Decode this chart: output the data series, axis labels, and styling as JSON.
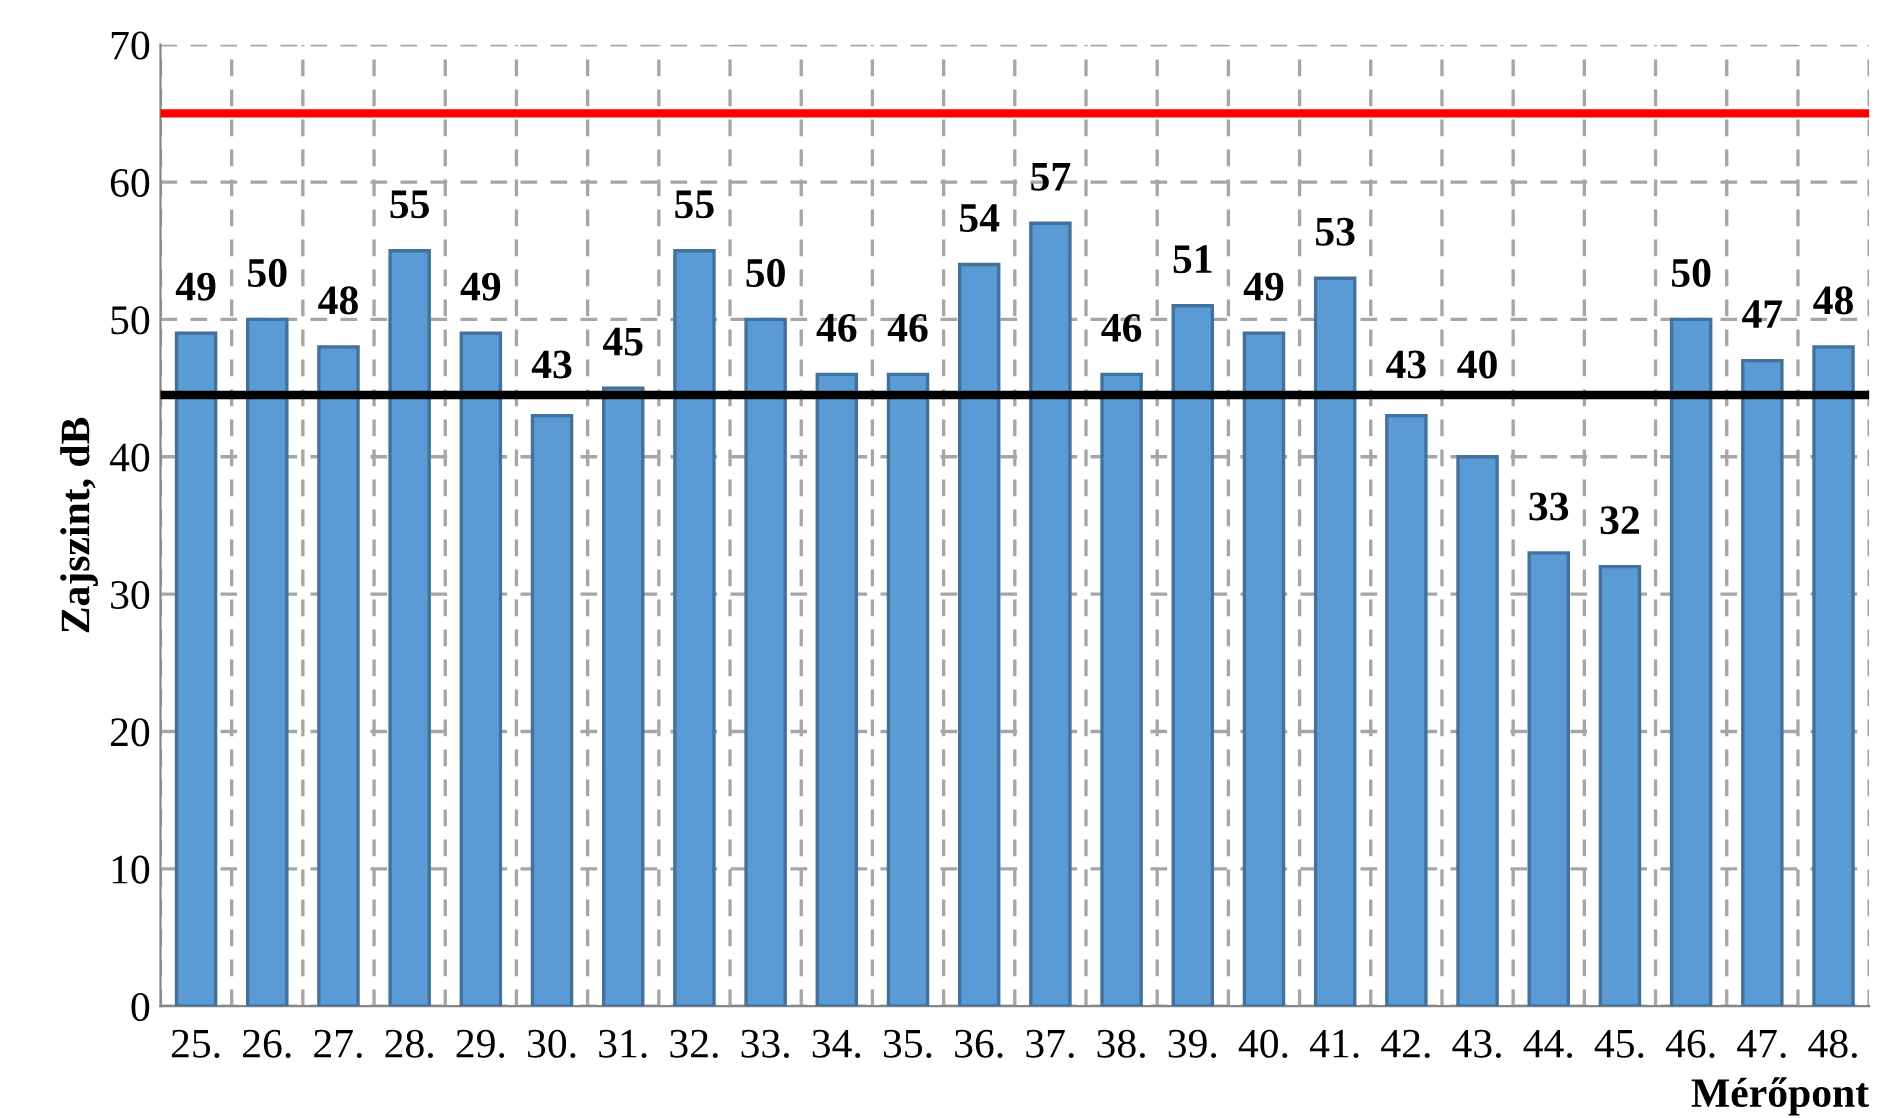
{
  "chart_data": {
    "type": "bar",
    "xlabel": "Mérőpont",
    "ylabel": "Zajszint, dB",
    "categories": [
      "25.",
      "26.",
      "27.",
      "28.",
      "29.",
      "30.",
      "31.",
      "32.",
      "33.",
      "34.",
      "35.",
      "36.",
      "37.",
      "38.",
      "39.",
      "40.",
      "41.",
      "42.",
      "43.",
      "44.",
      "45.",
      "46.",
      "47.",
      "48."
    ],
    "values": [
      49,
      50,
      48,
      55,
      49,
      43,
      45,
      55,
      50,
      46,
      46,
      54,
      57,
      46,
      51,
      49,
      53,
      43,
      40,
      33,
      32,
      50,
      47,
      48
    ],
    "color": "#5b9bd5",
    "ylim": [
      0,
      70
    ],
    "yticks": [
      0,
      10,
      20,
      30,
      40,
      50,
      60,
      70
    ],
    "grid": true,
    "data_labels": true,
    "ref_lines": [
      {
        "axis": "y",
        "value": 65,
        "color": "#ff0000"
      },
      {
        "axis": "y",
        "value": 44.5,
        "color": "#000000"
      }
    ]
  }
}
